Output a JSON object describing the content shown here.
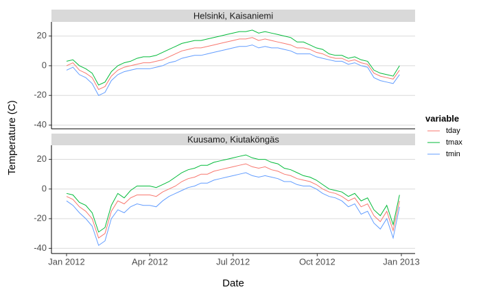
{
  "y_label": "Temperature (C)",
  "x_label": "Date",
  "legend_title": "variable",
  "chart_data": [
    {
      "type": "line",
      "title": "Helsinki, Kaisaniemi",
      "x": [
        0,
        7,
        14,
        21,
        28,
        35,
        42,
        49,
        56,
        63,
        70,
        77,
        84,
        91,
        98,
        105,
        112,
        119,
        126,
        133,
        140,
        147,
        154,
        161,
        168,
        175,
        182,
        189,
        196,
        203,
        210,
        217,
        224,
        231,
        238,
        245,
        252,
        259,
        266,
        273,
        280,
        287,
        294,
        301,
        308,
        315,
        322,
        329,
        336,
        343,
        350,
        357,
        364
      ],
      "xlim": [
        -16.5,
        381
      ],
      "ylim": [
        -42.5,
        29.5
      ],
      "yticks": [
        -40,
        -20,
        0,
        20
      ],
      "grid": true,
      "series": [
        {
          "name": "tday",
          "color": "#F8766D",
          "values": [
            0,
            2,
            -3,
            -5,
            -8,
            -16,
            -14,
            -7,
            -3,
            -1,
            0,
            1,
            2,
            2,
            3,
            4,
            6,
            8,
            10,
            11,
            12,
            12,
            13,
            14,
            15,
            16,
            17,
            18,
            18,
            19,
            17,
            18,
            17,
            16,
            15,
            14,
            12,
            12,
            11,
            9,
            8,
            6,
            5,
            5,
            3,
            4,
            2,
            1,
            -5,
            -7,
            -8,
            -9,
            -3
          ]
        },
        {
          "name": "tmax",
          "color": "#00BA38",
          "values": [
            3,
            4,
            0,
            -2,
            -5,
            -13,
            -11,
            -4,
            0,
            2,
            3,
            5,
            6,
            6,
            7,
            9,
            11,
            13,
            15,
            16,
            17,
            17,
            18,
            19,
            20,
            21,
            22,
            23,
            23,
            24,
            22,
            23,
            22,
            21,
            20,
            19,
            16,
            16,
            14,
            12,
            11,
            8,
            7,
            7,
            5,
            6,
            4,
            3,
            -3,
            -5,
            -6,
            -7,
            0
          ]
        },
        {
          "name": "tmin",
          "color": "#619CFF",
          "values": [
            -3,
            -1,
            -6,
            -8,
            -12,
            -20,
            -18,
            -10,
            -6,
            -4,
            -3,
            -2,
            -2,
            -2,
            -1,
            0,
            2,
            3,
            5,
            6,
            7,
            7,
            8,
            9,
            10,
            11,
            12,
            13,
            13,
            14,
            12,
            13,
            12,
            12,
            11,
            10,
            8,
            8,
            8,
            6,
            5,
            4,
            3,
            3,
            1,
            2,
            0,
            -1,
            -8,
            -10,
            -11,
            -12,
            -6
          ]
        }
      ]
    },
    {
      "type": "line",
      "title": "Kuusamo, Kiutaköngäs",
      "x": [
        0,
        7,
        14,
        21,
        28,
        35,
        42,
        49,
        56,
        63,
        70,
        77,
        84,
        91,
        98,
        105,
        112,
        119,
        126,
        133,
        140,
        147,
        154,
        161,
        168,
        175,
        182,
        189,
        196,
        203,
        210,
        217,
        224,
        231,
        238,
        245,
        252,
        259,
        266,
        273,
        280,
        287,
        294,
        301,
        308,
        315,
        322,
        329,
        336,
        343,
        350,
        357,
        364
      ],
      "xlim": [
        -16.5,
        381
      ],
      "ylim": [
        -43.5,
        29.5
      ],
      "yticks": [
        -40,
        -20,
        0,
        20
      ],
      "grid": true,
      "xticks": [
        {
          "value": 0,
          "label": "Jan 2012"
        },
        {
          "value": 91,
          "label": "Apr 2012"
        },
        {
          "value": 182,
          "label": "Jul 2012"
        },
        {
          "value": 274,
          "label": "Oct 2012"
        },
        {
          "value": 366,
          "label": "Jan 2013"
        }
      ],
      "series": [
        {
          "name": "tday",
          "color": "#F8766D",
          "values": [
            -5,
            -7,
            -12,
            -15,
            -20,
            -33,
            -30,
            -15,
            -8,
            -10,
            -6,
            -4,
            -4,
            -4,
            -5,
            -2,
            0,
            2,
            5,
            7,
            8,
            10,
            10,
            12,
            13,
            14,
            15,
            16,
            17,
            15,
            14,
            15,
            13,
            12,
            10,
            9,
            7,
            6,
            5,
            3,
            0,
            -2,
            -3,
            -5,
            -8,
            -6,
            -12,
            -10,
            -18,
            -22,
            -15,
            -28,
            -8
          ]
        },
        {
          "name": "tmax",
          "color": "#00BA38",
          "values": [
            -3,
            -4,
            -9,
            -11,
            -16,
            -29,
            -26,
            -11,
            -3,
            -6,
            -1,
            2,
            2,
            2,
            1,
            3,
            5,
            8,
            11,
            13,
            14,
            16,
            16,
            18,
            19,
            20,
            21,
            22,
            23,
            21,
            20,
            20,
            18,
            17,
            14,
            13,
            11,
            9,
            8,
            6,
            3,
            0,
            -1,
            -2,
            -5,
            -3,
            -8,
            -6,
            -14,
            -18,
            -11,
            -24,
            -4
          ]
        },
        {
          "name": "tmin",
          "color": "#619CFF",
          "values": [
            -8,
            -11,
            -16,
            -20,
            -25,
            -38,
            -35,
            -20,
            -14,
            -16,
            -12,
            -10,
            -11,
            -11,
            -12,
            -8,
            -5,
            -3,
            -1,
            1,
            2,
            4,
            4,
            6,
            7,
            8,
            9,
            10,
            11,
            9,
            8,
            9,
            8,
            7,
            5,
            5,
            3,
            2,
            2,
            0,
            -3,
            -5,
            -6,
            -8,
            -12,
            -10,
            -17,
            -15,
            -23,
            -27,
            -20,
            -33,
            -12
          ]
        }
      ]
    }
  ]
}
